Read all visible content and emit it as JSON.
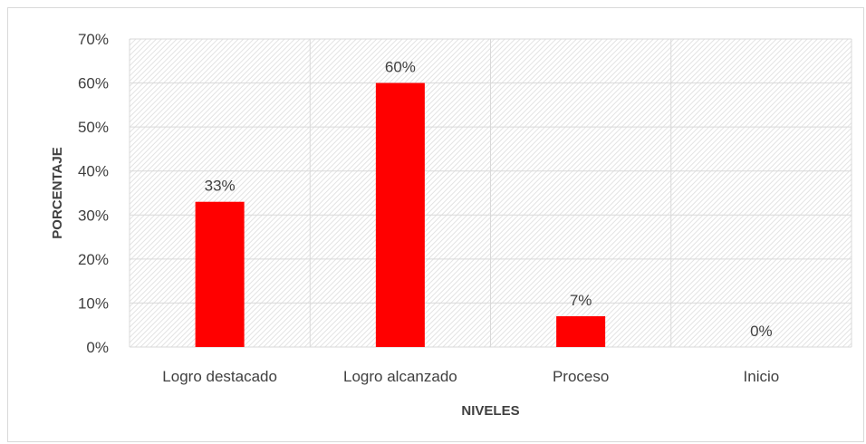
{
  "chart_data": {
    "type": "bar",
    "title": "",
    "xlabel": "NIVELES",
    "ylabel": "PORCENTAJE",
    "categories": [
      "Logro destacado",
      "Logro alcanzado",
      "Proceso",
      "Inicio"
    ],
    "values": [
      33,
      60,
      7,
      0
    ],
    "value_labels": [
      "33%",
      "60%",
      "7%",
      "0%"
    ],
    "ylim": [
      0,
      70
    ],
    "yticks": [
      0,
      10,
      20,
      30,
      40,
      50,
      60,
      70
    ],
    "ytick_labels": [
      "0%",
      "10%",
      "20%",
      "30%",
      "40%",
      "50%",
      "60%",
      "70%"
    ],
    "grid": true,
    "legend": "none",
    "colors": {
      "bar": "#ff0000",
      "grid": "#d9d9d9",
      "plot_pattern": "#e3e3e3",
      "text": "#404040"
    }
  }
}
